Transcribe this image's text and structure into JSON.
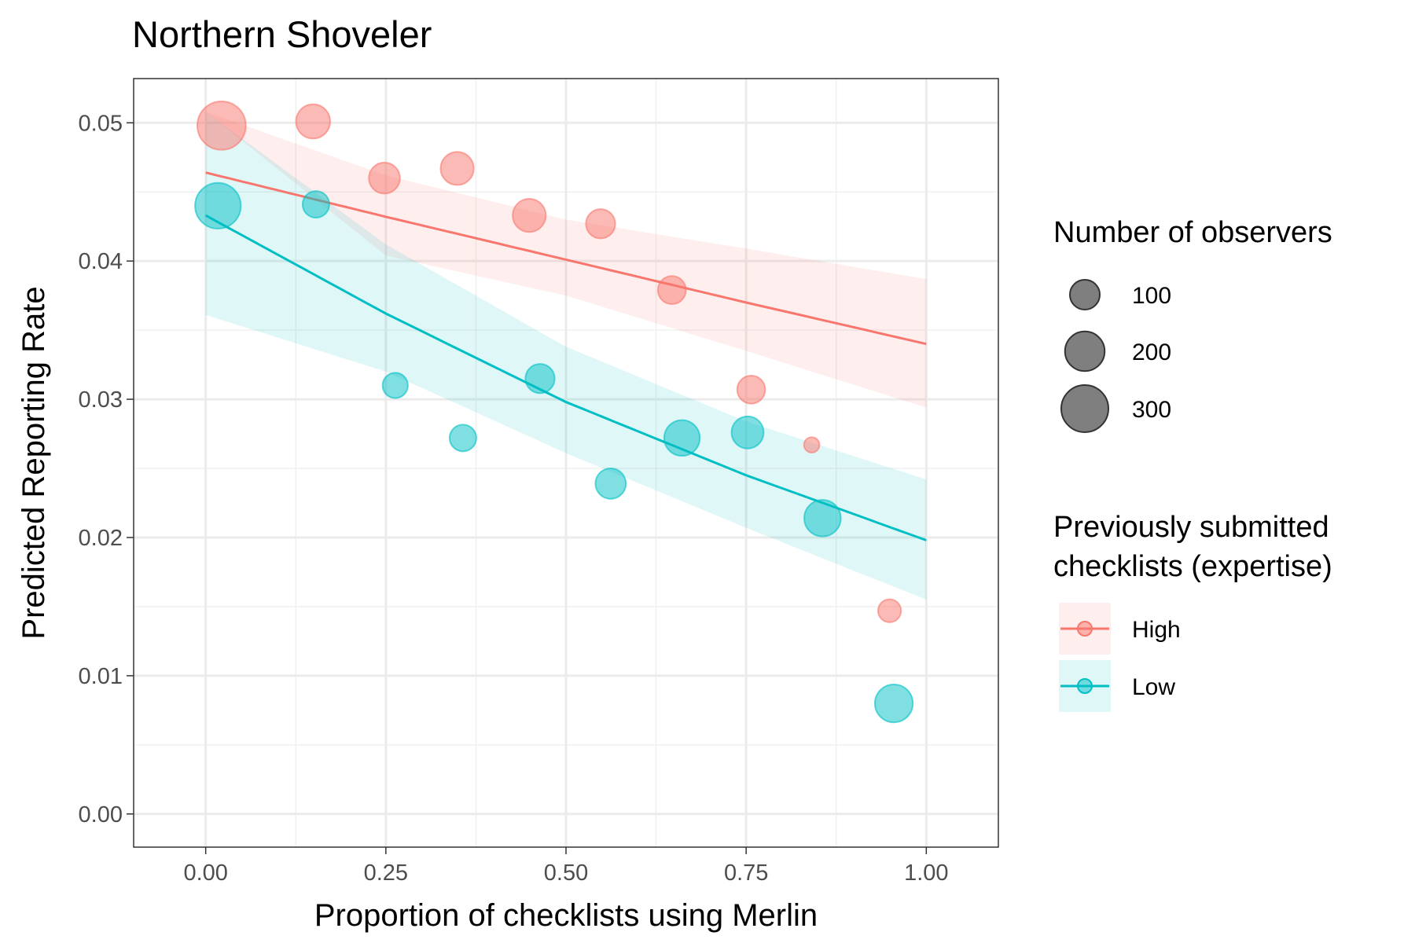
{
  "chart_data": {
    "type": "scatter",
    "title": "Northern Shoveler",
    "xlabel": "Proportion of checklists using Merlin",
    "ylabel": "Predicted Reporting Rate",
    "xlim": [
      -0.1,
      1.1
    ],
    "ylim": [
      -0.0024,
      0.0532
    ],
    "x_ticks": [
      0.0,
      0.25,
      0.5,
      0.75,
      1.0
    ],
    "x_tick_labels": [
      "0.00",
      "0.25",
      "0.50",
      "0.75",
      "1.00"
    ],
    "y_ticks": [
      0.0,
      0.01,
      0.02,
      0.03,
      0.04,
      0.05
    ],
    "y_tick_labels": [
      "0.00",
      "0.01",
      "0.02",
      "0.03",
      "0.04",
      "0.05"
    ],
    "grid": true,
    "colors": {
      "High": "#F8766D",
      "Low": "#00BFC4"
    },
    "series": [
      {
        "name": "High",
        "color": "#F8766D",
        "points": [
          {
            "x": 0.022,
            "y": 0.0498,
            "n": 320
          },
          {
            "x": 0.149,
            "y": 0.0501,
            "n": 140
          },
          {
            "x": 0.248,
            "y": 0.046,
            "n": 110
          },
          {
            "x": 0.349,
            "y": 0.0467,
            "n": 130
          },
          {
            "x": 0.449,
            "y": 0.0433,
            "n": 130
          },
          {
            "x": 0.548,
            "y": 0.0427,
            "n": 95
          },
          {
            "x": 0.647,
            "y": 0.0379,
            "n": 85
          },
          {
            "x": 0.757,
            "y": 0.0307,
            "n": 85
          },
          {
            "x": 0.841,
            "y": 0.0267,
            "n": 15
          },
          {
            "x": 0.949,
            "y": 0.0147,
            "n": 50
          }
        ],
        "fit": [
          {
            "x": 0.0,
            "y": 0.0464,
            "lo": 0.0508,
            "hi": 0.0508
          },
          {
            "x": 0.25,
            "y": 0.0432,
            "lo": 0.0404,
            "hi": 0.0462
          },
          {
            "x": 0.5,
            "y": 0.0401,
            "lo": 0.0375,
            "hi": 0.043
          },
          {
            "x": 0.75,
            "y": 0.037,
            "lo": 0.0335,
            "hi": 0.0409
          },
          {
            "x": 1.0,
            "y": 0.034,
            "lo": 0.0294,
            "hi": 0.0387
          }
        ]
      },
      {
        "name": "Low",
        "color": "#00BFC4",
        "points": [
          {
            "x": 0.017,
            "y": 0.044,
            "n": 280
          },
          {
            "x": 0.153,
            "y": 0.0441,
            "n": 75
          },
          {
            "x": 0.263,
            "y": 0.031,
            "n": 65
          },
          {
            "x": 0.357,
            "y": 0.0272,
            "n": 75
          },
          {
            "x": 0.464,
            "y": 0.0315,
            "n": 95
          },
          {
            "x": 0.562,
            "y": 0.0239,
            "n": 105
          },
          {
            "x": 0.661,
            "y": 0.0272,
            "n": 155
          },
          {
            "x": 0.752,
            "y": 0.0276,
            "n": 120
          },
          {
            "x": 0.856,
            "y": 0.0214,
            "n": 165
          },
          {
            "x": 0.955,
            "y": 0.008,
            "n": 180
          }
        ],
        "fit": [
          {
            "x": 0.0,
            "y": 0.0433,
            "lo": 0.0361,
            "hi": 0.0508
          },
          {
            "x": 0.25,
            "y": 0.0362,
            "lo": 0.032,
            "hi": 0.0412
          },
          {
            "x": 0.5,
            "y": 0.0298,
            "lo": 0.0261,
            "hi": 0.0338
          },
          {
            "x": 0.75,
            "y": 0.0245,
            "lo": 0.0207,
            "hi": 0.0284
          },
          {
            "x": 1.0,
            "y": 0.0198,
            "lo": 0.0155,
            "hi": 0.0242
          }
        ]
      }
    ],
    "size_legend": {
      "title": "Number of observers",
      "entries": [
        {
          "value": 100,
          "label": "100"
        },
        {
          "value": 200,
          "label": "200"
        },
        {
          "value": 300,
          "label": "300"
        }
      ]
    },
    "color_legend": {
      "title_lines": [
        "Previously submitted",
        "checklists (expertise)"
      ],
      "entries": [
        {
          "label": "High",
          "color": "#F8766D"
        },
        {
          "label": "Low",
          "color": "#00BFC4"
        }
      ]
    }
  }
}
